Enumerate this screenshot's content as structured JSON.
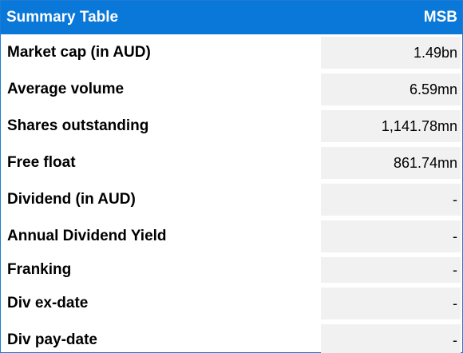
{
  "header": {
    "title": "Summary Table",
    "ticker": "MSB"
  },
  "rows": [
    {
      "label": "Market cap (in AUD)",
      "value": "1.49bn"
    },
    {
      "label": "Average volume",
      "value": "6.59mn"
    },
    {
      "label": "Shares outstanding",
      "value": "1,141.78mn"
    },
    {
      "label": "Free float",
      "value": "861.74mn"
    },
    {
      "label": "Dividend (in AUD)",
      "value": "-"
    },
    {
      "label": "Annual Dividend Yield",
      "value": "-"
    },
    {
      "label": "Franking",
      "value": "-"
    },
    {
      "label": "Div ex-date",
      "value": "-"
    },
    {
      "label": "Div pay-date",
      "value": "-"
    }
  ],
  "colors": {
    "header_bg": "#0a78d8",
    "header_text": "#ffffff",
    "value_cell_bg": "#f1f1f1",
    "border": "#1f7bd6"
  }
}
